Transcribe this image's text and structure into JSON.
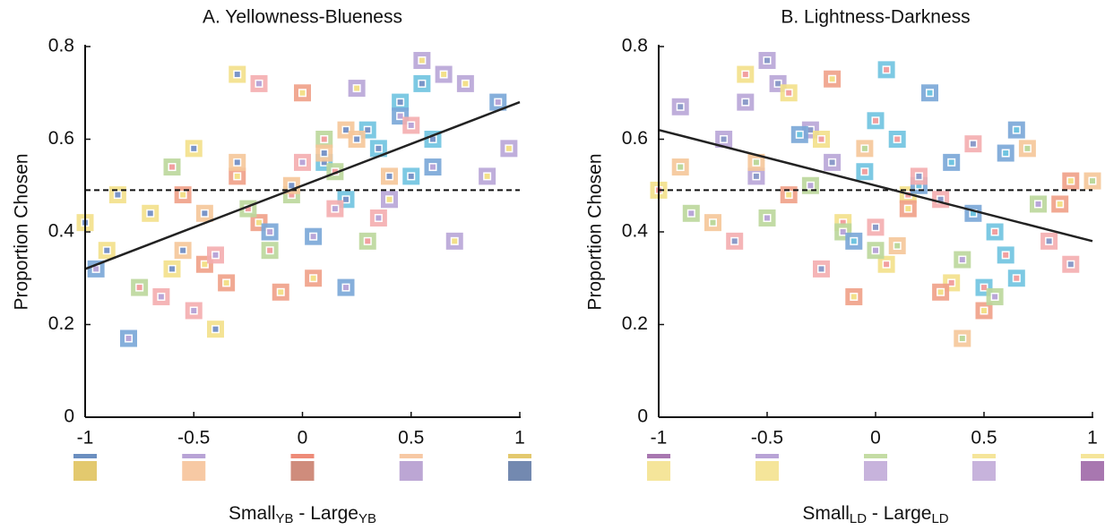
{
  "chart_data": [
    {
      "type": "scatter",
      "title": "A. Yellowness-Blueness",
      "ylabel": "Proportion Chosen",
      "xlabel": [
        "Small",
        "YB",
        " - Large",
        "YB"
      ],
      "xlim": [
        -1,
        1
      ],
      "ylim": [
        0,
        0.8
      ],
      "xticks": [
        -1,
        -0.5,
        0,
        0.5,
        1
      ],
      "yticks": [
        0,
        0.2,
        0.4,
        0.6,
        0.8
      ],
      "hline": 0.49,
      "fit": {
        "x": [
          -1,
          1
        ],
        "values": [
          0.32,
          0.68
        ],
        "color": "#222222"
      },
      "swatches": [
        {
          "x": -1,
          "top": "#6b8fc0",
          "bottom": "#e3c96e"
        },
        {
          "x": -0.5,
          "top": "#b8a3d6",
          "bottom": "#f7c9a4"
        },
        {
          "x": 0,
          "top": "#ee8b78",
          "bottom": "#cf8c7c"
        },
        {
          "x": 0.5,
          "top": "#f7c9a4",
          "bottom": "#bca6d4"
        },
        {
          "x": 1,
          "top": "#e3c96e",
          "bottom": "#7389b0"
        }
      ],
      "series": [
        {
          "color": "#70c4e0",
          "inner": "#7a95c8",
          "x": [
            0.1,
            0.3,
            0.45,
            0.55,
            0.6,
            0.2,
            0.35,
            0.5
          ],
          "values": [
            0.55,
            0.62,
            0.68,
            0.72,
            0.6,
            0.47,
            0.58,
            0.52
          ]
        },
        {
          "color": "#f0a088",
          "inner": "#f3e08a",
          "x": [
            -0.55,
            -0.45,
            -0.3,
            -0.1,
            0,
            0.05,
            -0.2,
            -0.35
          ],
          "values": [
            0.48,
            0.33,
            0.52,
            0.27,
            0.7,
            0.3,
            0.42,
            0.29
          ]
        },
        {
          "color": "#f3e08a",
          "inner": "#7a95c8",
          "x": [
            -1,
            -0.85,
            -0.7,
            -0.5,
            -0.4,
            -0.9,
            -0.6,
            -0.3
          ],
          "values": [
            0.42,
            0.48,
            0.44,
            0.58,
            0.19,
            0.36,
            0.32,
            0.74
          ]
        },
        {
          "color": "#b9a6d8",
          "inner": "#f3e08a",
          "x": [
            0.65,
            0.75,
            0.85,
            0.95,
            0.4,
            0.25,
            0.55,
            0.7
          ],
          "values": [
            0.74,
            0.72,
            0.52,
            0.58,
            0.47,
            0.71,
            0.77,
            0.38
          ]
        },
        {
          "color": "#bcd89c",
          "inner": "#f2a0a0",
          "x": [
            -0.75,
            -0.6,
            -0.25,
            -0.15,
            0.1,
            0.15,
            -0.05,
            0.3
          ],
          "values": [
            0.28,
            0.54,
            0.45,
            0.36,
            0.6,
            0.53,
            0.48,
            0.38
          ]
        },
        {
          "color": "#7aa7d8",
          "inner": "#b9a6d8",
          "x": [
            -0.95,
            -0.8,
            -0.15,
            0.05,
            0.2,
            0.45,
            0.6,
            0.9
          ],
          "values": [
            0.32,
            0.17,
            0.4,
            0.39,
            0.28,
            0.65,
            0.54,
            0.68
          ]
        },
        {
          "color": "#f4aeb0",
          "inner": "#b9a6d8",
          "x": [
            -0.65,
            -0.5,
            -0.4,
            -0.2,
            0,
            0.15,
            0.35,
            0.5
          ],
          "values": [
            0.26,
            0.23,
            0.35,
            0.72,
            0.55,
            0.45,
            0.43,
            0.63
          ]
        },
        {
          "color": "#f6c79a",
          "inner": "#7a95c8",
          "x": [
            -0.55,
            -0.3,
            -0.05,
            0.1,
            0.2,
            0.4,
            -0.45,
            0.25
          ],
          "values": [
            0.36,
            0.55,
            0.5,
            0.57,
            0.62,
            0.52,
            0.44,
            0.6
          ]
        }
      ]
    },
    {
      "type": "scatter",
      "title": "B. Lightness-Darkness",
      "ylabel": "Proportion Chosen",
      "xlabel": [
        "Small",
        "LD",
        " - Large",
        "LD"
      ],
      "xlim": [
        -1,
        1
      ],
      "ylim": [
        0,
        0.8
      ],
      "xticks": [
        -1,
        -0.5,
        0,
        0.5,
        1
      ],
      "yticks": [
        0,
        0.2,
        0.4,
        0.6,
        0.8
      ],
      "hline": 0.49,
      "fit": {
        "x": [
          -1,
          1
        ],
        "values": [
          0.62,
          0.38
        ],
        "color": "#222222"
      },
      "swatches": [
        {
          "x": -1,
          "top": "#a877b0",
          "bottom": "#f5e59a"
        },
        {
          "x": -0.5,
          "top": "#b8a3d6",
          "bottom": "#f5e59a"
        },
        {
          "x": 0,
          "top": "#c4dca4",
          "bottom": "#c7b3dc"
        },
        {
          "x": 0.5,
          "top": "#f5e59a",
          "bottom": "#c7b3dc"
        },
        {
          "x": 1,
          "top": "#f5e59a",
          "bottom": "#a877b0"
        }
      ],
      "series": [
        {
          "color": "#b9a6d8",
          "inner": "#8c9bc9",
          "x": [
            -0.9,
            -0.6,
            -0.5,
            -0.45,
            -0.3,
            -0.2,
            -0.7,
            -0.55
          ],
          "values": [
            0.67,
            0.68,
            0.77,
            0.72,
            0.62,
            0.55,
            0.6,
            0.52
          ]
        },
        {
          "color": "#70c4e0",
          "inner": "#f2a0a0",
          "x": [
            0,
            0.05,
            0.1,
            -0.05,
            0.55,
            0.6,
            0.5,
            0.65
          ],
          "values": [
            0.64,
            0.75,
            0.6,
            0.53,
            0.4,
            0.35,
            0.28,
            0.3
          ]
        },
        {
          "color": "#f3e08a",
          "inner": "#f2a0a0",
          "x": [
            -1,
            -0.6,
            -0.4,
            -0.25,
            -0.15,
            0.05,
            0.15,
            0.35
          ],
          "values": [
            0.49,
            0.74,
            0.7,
            0.6,
            0.42,
            0.33,
            0.48,
            0.29
          ]
        },
        {
          "color": "#f0a088",
          "inner": "#f3e08a",
          "x": [
            -0.4,
            -0.2,
            -0.1,
            0.15,
            0.3,
            0.5,
            0.9,
            0.85
          ],
          "values": [
            0.48,
            0.73,
            0.26,
            0.45,
            0.27,
            0.23,
            0.51,
            0.46
          ]
        },
        {
          "color": "#bcd89c",
          "inner": "#b9a6d8",
          "x": [
            -0.85,
            -0.5,
            -0.3,
            -0.15,
            0,
            0.4,
            0.55,
            0.75
          ],
          "values": [
            0.44,
            0.43,
            0.5,
            0.4,
            0.36,
            0.34,
            0.26,
            0.46
          ]
        },
        {
          "color": "#7aa7d8",
          "inner": "#70c4e0",
          "x": [
            -0.35,
            -0.1,
            0.2,
            0.35,
            0.6,
            0.65,
            0.45,
            0.25
          ],
          "values": [
            0.61,
            0.38,
            0.5,
            0.55,
            0.57,
            0.62,
            0.44,
            0.7
          ]
        },
        {
          "color": "#f4aeb0",
          "inner": "#8c9bc9",
          "x": [
            -0.65,
            -0.25,
            0,
            0.3,
            0.45,
            0.8,
            0.9,
            0.2
          ],
          "values": [
            0.38,
            0.32,
            0.41,
            0.47,
            0.59,
            0.38,
            0.33,
            0.52
          ]
        },
        {
          "color": "#f6c79a",
          "inner": "#bcd89c",
          "x": [
            -0.75,
            -0.55,
            -0.05,
            0.1,
            0.4,
            0.7,
            1,
            -0.9
          ],
          "values": [
            0.42,
            0.55,
            0.58,
            0.37,
            0.17,
            0.58,
            0.51,
            0.54
          ]
        }
      ]
    }
  ]
}
